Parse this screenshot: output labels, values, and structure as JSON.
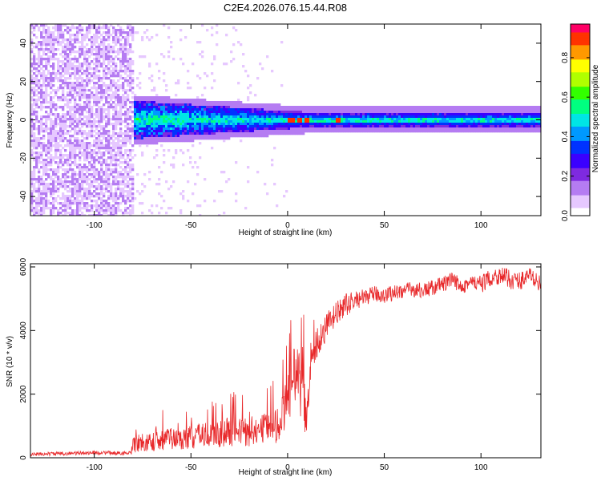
{
  "chart_data": [
    {
      "type": "heatmap",
      "title": "C2E4.2026.076.15.44.R08",
      "xlabel": "Height of straight line (km)",
      "ylabel": "Frequency (Hz)",
      "xlim": [
        -133,
        131
      ],
      "ylim": [
        -50,
        50
      ],
      "xticks": [
        -100,
        -50,
        0,
        50,
        100
      ],
      "yticks": [
        -40,
        -20,
        0,
        20,
        40
      ],
      "noise_region_end_km": -80,
      "band_halfwidth_hz": 4,
      "hotspots_km": [
        2,
        6,
        10,
        26
      ],
      "colorbar": {
        "label": "Normalized spectral amplitude",
        "range": [
          0,
          0.97
        ],
        "ticks": [
          0.0,
          0.2,
          0.4,
          0.6,
          0.8
        ],
        "tick_labels": [
          "0.0",
          "0.2",
          "0.4",
          "0.6",
          "0.8"
        ],
        "colormap": [
          "#ffffff",
          "#e6c8ff",
          "#b57cf2",
          "#7f2ae0",
          "#3a00ff",
          "#0033ff",
          "#0099ff",
          "#00e5e5",
          "#00ff80",
          "#33ff00",
          "#b0ff00",
          "#ffff00",
          "#ff9900",
          "#ff3300",
          "#ff0066"
        ]
      }
    },
    {
      "type": "line",
      "xlabel": "Height of straight line (km)",
      "ylabel": "SNR (10 * v/v)",
      "xlim": [
        -133,
        131
      ],
      "ylim": [
        0,
        6100
      ],
      "xticks": [
        -100,
        -50,
        0,
        50,
        100
      ],
      "yticks": [
        0,
        2000,
        4000,
        6000
      ],
      "color": "#e8282a",
      "x": [
        -133,
        -120,
        -110,
        -100,
        -90,
        -81,
        -80,
        -75,
        -70,
        -65,
        -60,
        -55,
        -50,
        -45,
        -40,
        -35,
        -30,
        -25,
        -20,
        -15,
        -10,
        -5,
        0,
        3,
        5,
        8,
        10,
        12,
        15,
        20,
        25,
        30,
        35,
        40,
        45,
        50,
        55,
        60,
        65,
        70,
        75,
        80,
        85,
        90,
        95,
        100,
        105,
        110,
        115,
        120,
        125,
        131
      ],
      "y": [
        100,
        130,
        140,
        160,
        150,
        140,
        400,
        420,
        500,
        550,
        600,
        580,
        650,
        700,
        700,
        750,
        800,
        850,
        700,
        850,
        950,
        1000,
        1700,
        2500,
        2800,
        1900,
        1300,
        3200,
        3600,
        4100,
        4500,
        4800,
        4950,
        5050,
        5150,
        5100,
        5200,
        5250,
        5300,
        5250,
        5350,
        5450,
        5550,
        5450,
        5500,
        5450,
        5650,
        5750,
        5600,
        5550,
        5750,
        5450
      ],
      "noise": [
        60,
        60,
        60,
        60,
        60,
        60,
        250,
        250,
        300,
        320,
        340,
        330,
        380,
        380,
        400,
        420,
        450,
        450,
        400,
        400,
        550,
        600,
        700,
        900,
        1000,
        1000,
        600,
        600,
        500,
        450,
        400,
        350,
        300,
        250,
        250,
        250,
        250,
        250,
        250,
        250,
        250,
        250,
        280,
        280,
        280,
        280,
        280,
        300,
        300,
        300,
        250,
        250
      ]
    }
  ]
}
